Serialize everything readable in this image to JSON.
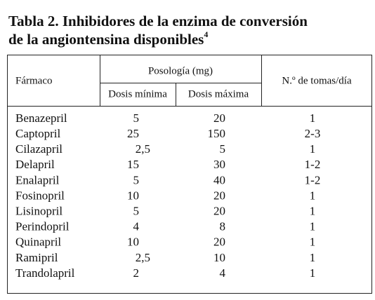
{
  "title": {
    "line1": "Tabla 2. Inhibidores de la enzima de conversión",
    "line2": "de la angiontensina disponibles",
    "sup": "4"
  },
  "table": {
    "headers": {
      "drug": "Fármaco",
      "dosage": "Posología (mg)",
      "min": "Dosis mínima",
      "max": "Dosis máxima",
      "doses": "N.º de tomas/día"
    },
    "rows": [
      [
        "Benazepril",
        "5",
        "20",
        "1"
      ],
      [
        "Captopril",
        "25",
        "150",
        "2-3"
      ],
      [
        "Cilazapril",
        "2,5",
        "5",
        "1"
      ],
      [
        "Delapril",
        "15",
        "30",
        "1-2"
      ],
      [
        "Enalapril",
        "5",
        "40",
        "1-2"
      ],
      [
        "Fosinopril",
        "10",
        "20",
        "1"
      ],
      [
        "Lisinopril",
        "5",
        "20",
        "1"
      ],
      [
        "Perindopril",
        "4",
        "8",
        "1"
      ],
      [
        "Quinapril",
        "10",
        "20",
        "1"
      ],
      [
        "Ramipril",
        "2,5",
        "10",
        "1"
      ],
      [
        "Trandolapril",
        "2",
        "4",
        "1"
      ]
    ]
  }
}
